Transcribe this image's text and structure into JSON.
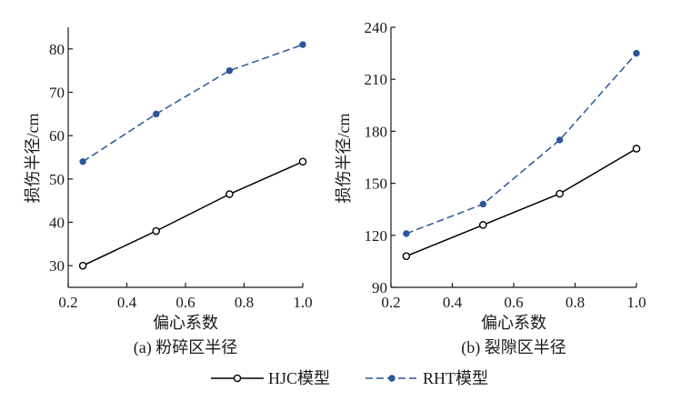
{
  "chart_data": [
    {
      "type": "line",
      "caption": "(a) 粉碎区半径",
      "xlabel": "偏心系数",
      "ylabel": "损伤半径/cm",
      "xlim": [
        0.2,
        1.0
      ],
      "ylim": [
        25,
        85
      ],
      "xticks": [
        0.2,
        0.4,
        0.6,
        0.8,
        1.0
      ],
      "xtick_labels": [
        "0.2",
        "0.4",
        "0.6",
        "0.8",
        "1.0"
      ],
      "yticks": [
        30,
        40,
        50,
        60,
        70,
        80
      ],
      "ytick_labels": [
        "30",
        "40",
        "50",
        "60",
        "70",
        "80"
      ],
      "x": [
        0.25,
        0.5,
        0.75,
        1.0
      ],
      "series": [
        {
          "name": "HJC模型",
          "values": [
            30,
            38,
            46.5,
            54
          ],
          "color": "#000000",
          "marker": "open-circle",
          "line": "solid"
        },
        {
          "name": "RHT模型",
          "values": [
            54,
            65,
            75,
            81
          ],
          "color": "#2b5797",
          "marker": "filled-circle",
          "line": "dashed"
        }
      ]
    },
    {
      "type": "line",
      "caption": "(b) 裂隙区半径",
      "xlabel": "偏心系数",
      "ylabel": "损伤半径/cm",
      "xlim": [
        0.2,
        1.0
      ],
      "ylim": [
        90,
        240
      ],
      "xticks": [
        0.2,
        0.4,
        0.6,
        0.8,
        1.0
      ],
      "xtick_labels": [
        "0.2",
        "0.4",
        "0.6",
        "0.8",
        "1.0"
      ],
      "yticks": [
        90,
        120,
        150,
        180,
        210,
        240
      ],
      "ytick_labels": [
        "90",
        "120",
        "150",
        "180",
        "210",
        "240"
      ],
      "x": [
        0.25,
        0.5,
        0.75,
        1.0
      ],
      "series": [
        {
          "name": "HJC模型",
          "values": [
            108,
            126,
            144,
            170
          ],
          "color": "#000000",
          "marker": "open-circle",
          "line": "solid"
        },
        {
          "name": "RHT模型",
          "values": [
            121,
            138,
            175,
            225
          ],
          "color": "#2b5797",
          "marker": "filled-circle",
          "line": "dashed"
        }
      ]
    }
  ],
  "legend": {
    "position": "bottom-center",
    "items": [
      "HJC模型",
      "RHT模型"
    ]
  }
}
